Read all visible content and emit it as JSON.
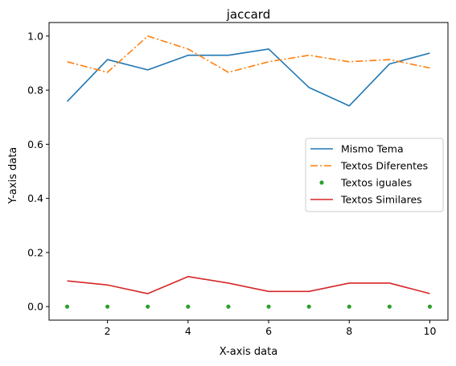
{
  "chart_data": {
    "type": "line",
    "title": "jaccard",
    "xlabel": "X-axis data",
    "ylabel": "Y-axis data",
    "xlim": [
      0.55,
      10.45
    ],
    "ylim": [
      -0.05,
      1.05
    ],
    "xticks": [
      2,
      4,
      6,
      8,
      10
    ],
    "yticks": [
      0.0,
      0.2,
      0.4,
      0.6,
      0.8,
      1.0
    ],
    "xtick_labels": [
      "2",
      "4",
      "6",
      "8",
      "10"
    ],
    "ytick_labels": [
      "0.0",
      "0.2",
      "0.4",
      "0.6",
      "0.8",
      "1.0"
    ],
    "grid": false,
    "legend_position": "center-right",
    "x": [
      1,
      2,
      3,
      4,
      5,
      6,
      7,
      8,
      9,
      10
    ],
    "series": [
      {
        "name": "Mismo Tema",
        "style": "solid",
        "marker": "none",
        "color": "#1f77b4",
        "values": [
          0.758,
          0.913,
          0.875,
          0.929,
          0.929,
          0.952,
          0.81,
          0.742,
          0.897,
          0.937
        ]
      },
      {
        "name": "Textos Diferentes",
        "style": "dashdot",
        "marker": "none",
        "color": "#ff7f0e",
        "values": [
          0.905,
          0.866,
          1.0,
          0.952,
          0.866,
          0.905,
          0.929,
          0.905,
          0.913,
          0.882
        ]
      },
      {
        "name": "Textos iguales",
        "style": "none",
        "marker": "dot",
        "color": "#2ca02c",
        "values": [
          0,
          0,
          0,
          0,
          0,
          0,
          0,
          0,
          0,
          0
        ]
      },
      {
        "name": "Textos Similares",
        "style": "solid",
        "marker": "none",
        "color": "#d62728",
        "values": [
          0.095,
          0.08,
          0.048,
          0.111,
          0.087,
          0.056,
          0.056,
          0.087,
          0.087,
          0.048
        ]
      }
    ]
  }
}
